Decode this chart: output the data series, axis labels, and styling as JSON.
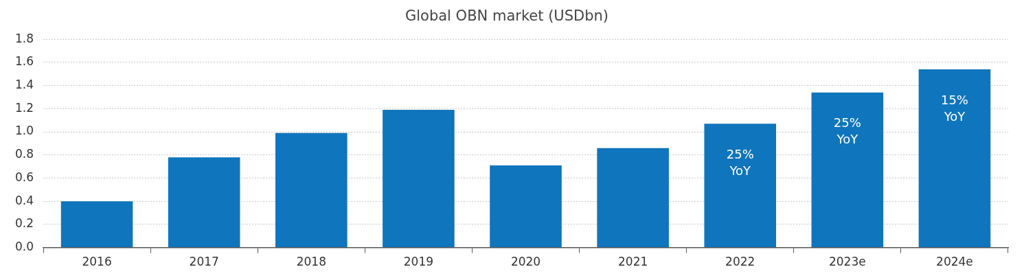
{
  "chart_data": {
    "type": "bar",
    "title": "Global OBN market (USDbn)",
    "categories": [
      "2016",
      "2017",
      "2018",
      "2019",
      "2020",
      "2021",
      "2022",
      "2023e",
      "2024e"
    ],
    "values": [
      0.4,
      0.78,
      0.99,
      1.19,
      0.71,
      0.86,
      1.07,
      1.34,
      1.54
    ],
    "annotations": [
      {
        "text": "25% YoY",
        "x": "2022",
        "y": 1.07
      },
      {
        "text": "25% YoY",
        "x": "2023e",
        "y": 1.34
      },
      {
        "text": "15% YoY",
        "x": "2024e",
        "y": 1.54
      }
    ],
    "color": "#0f75bc",
    "ylim": [
      0,
      1.8
    ],
    "yticks": [
      {
        "value": 0,
        "label": "0.0"
      },
      0.2,
      0.4,
      0.6,
      0.8,
      {
        "value": 1,
        "label": "1.0"
      },
      1.2,
      1.4,
      1.6,
      1.8
    ],
    "grid": "y",
    "legend": false
  }
}
